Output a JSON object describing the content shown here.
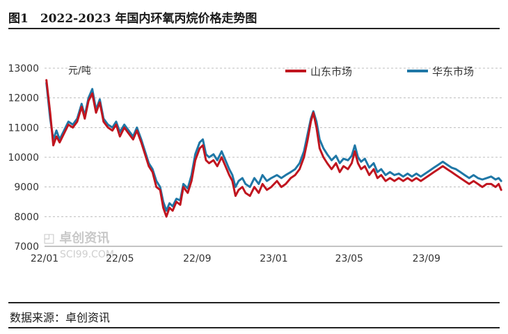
{
  "header": {
    "title": "图1　2022-2023 年国内环氧丙烷价格走势图"
  },
  "footer": {
    "source": "数据来源：卓创资讯"
  },
  "watermark": {
    "cn": "卓创资讯",
    "en": "SCI99.COM"
  },
  "chart_data": {
    "type": "line",
    "title": "图1　2022-2023 年国内环氧丙烷价格走势图",
    "ylabel": "元/吨",
    "xlabel": "",
    "ylim": [
      7000,
      13000
    ],
    "yticks": [
      "13000",
      "12000",
      "11000",
      "10000",
      "9000",
      "8000",
      "7000"
    ],
    "xticks": [
      "22/01",
      "22/05",
      "22/09",
      "23/01",
      "23/05",
      "23/09"
    ],
    "x_range": [
      "2022-01-01",
      "2023-12-31"
    ],
    "grid": "horizontal dashed",
    "legend": "top",
    "series": [
      {
        "name": "山东市场",
        "color": "#c0151f",
        "points": [
          [
            "2022-01-04",
            12600
          ],
          [
            "2022-01-10",
            11500
          ],
          [
            "2022-01-15",
            10400
          ],
          [
            "2022-01-20",
            10700
          ],
          [
            "2022-01-25",
            10500
          ],
          [
            "2022-02-01",
            10800
          ],
          [
            "2022-02-08",
            11100
          ],
          [
            "2022-02-15",
            11000
          ],
          [
            "2022-02-22",
            11200
          ],
          [
            "2022-03-01",
            11700
          ],
          [
            "2022-03-06",
            11300
          ],
          [
            "2022-03-12",
            11900
          ],
          [
            "2022-03-18",
            12150
          ],
          [
            "2022-03-24",
            11500
          ],
          [
            "2022-03-30",
            11850
          ],
          [
            "2022-04-05",
            11200
          ],
          [
            "2022-04-12",
            11000
          ],
          [
            "2022-04-19",
            10900
          ],
          [
            "2022-04-25",
            11100
          ],
          [
            "2022-05-01",
            10700
          ],
          [
            "2022-05-08",
            11000
          ],
          [
            "2022-05-15",
            10800
          ],
          [
            "2022-05-22",
            10600
          ],
          [
            "2022-05-28",
            10900
          ],
          [
            "2022-06-04",
            10500
          ],
          [
            "2022-06-10",
            10100
          ],
          [
            "2022-06-16",
            9700
          ],
          [
            "2022-06-22",
            9500
          ],
          [
            "2022-06-28",
            9000
          ],
          [
            "2022-07-04",
            8900
          ],
          [
            "2022-07-09",
            8300
          ],
          [
            "2022-07-14",
            8000
          ],
          [
            "2022-07-19",
            8300
          ],
          [
            "2022-07-24",
            8200
          ],
          [
            "2022-07-30",
            8500
          ],
          [
            "2022-08-05",
            8400
          ],
          [
            "2022-08-10",
            9000
          ],
          [
            "2022-08-17",
            8800
          ],
          [
            "2022-08-23",
            9200
          ],
          [
            "2022-08-29",
            9900
          ],
          [
            "2022-09-05",
            10300
          ],
          [
            "2022-09-10",
            10400
          ],
          [
            "2022-09-15",
            9900
          ],
          [
            "2022-09-20",
            9800
          ],
          [
            "2022-09-27",
            9900
          ],
          [
            "2022-10-03",
            9700
          ],
          [
            "2022-10-10",
            10000
          ],
          [
            "2022-10-16",
            9700
          ],
          [
            "2022-10-22",
            9400
          ],
          [
            "2022-10-27",
            9200
          ],
          [
            "2022-11-01",
            8700
          ],
          [
            "2022-11-06",
            8900
          ],
          [
            "2022-11-12",
            9000
          ],
          [
            "2022-11-17",
            8800
          ],
          [
            "2022-11-24",
            8700
          ],
          [
            "2022-12-01",
            9000
          ],
          [
            "2022-12-08",
            8800
          ],
          [
            "2022-12-14",
            9100
          ],
          [
            "2022-12-21",
            8900
          ],
          [
            "2022-12-28",
            9000
          ],
          [
            "2023-01-06",
            9200
          ],
          [
            "2023-01-13",
            9000
          ],
          [
            "2023-01-20",
            9100
          ],
          [
            "2023-01-28",
            9300
          ],
          [
            "2023-02-04",
            9400
          ],
          [
            "2023-02-11",
            9600
          ],
          [
            "2023-02-18",
            10000
          ],
          [
            "2023-02-24",
            10600
          ],
          [
            "2023-03-01",
            11200
          ],
          [
            "2023-03-05",
            11500
          ],
          [
            "2023-03-10",
            11000
          ],
          [
            "2023-03-15",
            10300
          ],
          [
            "2023-03-21",
            10000
          ],
          [
            "2023-03-27",
            9800
          ],
          [
            "2023-04-03",
            9600
          ],
          [
            "2023-04-10",
            9800
          ],
          [
            "2023-04-16",
            9500
          ],
          [
            "2023-04-22",
            9700
          ],
          [
            "2023-04-29",
            9600
          ],
          [
            "2023-05-05",
            9800
          ],
          [
            "2023-05-10",
            10200
          ],
          [
            "2023-05-15",
            9800
          ],
          [
            "2023-05-20",
            9600
          ],
          [
            "2023-05-26",
            9700
          ],
          [
            "2023-06-02",
            9400
          ],
          [
            "2023-06-09",
            9600
          ],
          [
            "2023-06-15",
            9300
          ],
          [
            "2023-06-21",
            9400
          ],
          [
            "2023-06-28",
            9200
          ],
          [
            "2023-07-05",
            9300
          ],
          [
            "2023-07-12",
            9200
          ],
          [
            "2023-07-19",
            9300
          ],
          [
            "2023-07-26",
            9200
          ],
          [
            "2023-08-02",
            9300
          ],
          [
            "2023-08-09",
            9200
          ],
          [
            "2023-08-16",
            9300
          ],
          [
            "2023-08-23",
            9200
          ],
          [
            "2023-08-30",
            9300
          ],
          [
            "2023-09-06",
            9400
          ],
          [
            "2023-09-13",
            9500
          ],
          [
            "2023-09-20",
            9600
          ],
          [
            "2023-09-27",
            9700
          ],
          [
            "2023-10-04",
            9600
          ],
          [
            "2023-10-11",
            9500
          ],
          [
            "2023-10-18",
            9400
          ],
          [
            "2023-10-25",
            9300
          ],
          [
            "2023-11-01",
            9200
          ],
          [
            "2023-11-08",
            9100
          ],
          [
            "2023-11-15",
            9200
          ],
          [
            "2023-11-22",
            9100
          ],
          [
            "2023-11-29",
            9000
          ],
          [
            "2023-12-06",
            9100
          ],
          [
            "2023-12-13",
            9100
          ],
          [
            "2023-12-20",
            9000
          ],
          [
            "2023-12-25",
            9100
          ],
          [
            "2023-12-29",
            8900
          ]
        ]
      },
      {
        "name": "华东市场",
        "color": "#1f77a6",
        "points": [
          [
            "2022-01-04",
            12500
          ],
          [
            "2022-01-10",
            11300
          ],
          [
            "2022-01-15",
            10600
          ],
          [
            "2022-01-20",
            10900
          ],
          [
            "2022-01-25",
            10600
          ],
          [
            "2022-02-01",
            10900
          ],
          [
            "2022-02-08",
            11200
          ],
          [
            "2022-02-15",
            11100
          ],
          [
            "2022-02-22",
            11300
          ],
          [
            "2022-03-01",
            11800
          ],
          [
            "2022-03-06",
            11400
          ],
          [
            "2022-03-12",
            12000
          ],
          [
            "2022-03-18",
            12300
          ],
          [
            "2022-03-24",
            11600
          ],
          [
            "2022-03-30",
            11950
          ],
          [
            "2022-04-05",
            11300
          ],
          [
            "2022-04-12",
            11100
          ],
          [
            "2022-04-19",
            11000
          ],
          [
            "2022-04-25",
            11200
          ],
          [
            "2022-05-01",
            10850
          ],
          [
            "2022-05-08",
            11100
          ],
          [
            "2022-05-15",
            10900
          ],
          [
            "2022-05-22",
            10700
          ],
          [
            "2022-05-28",
            11000
          ],
          [
            "2022-06-04",
            10600
          ],
          [
            "2022-06-10",
            10200
          ],
          [
            "2022-06-16",
            9800
          ],
          [
            "2022-06-22",
            9600
          ],
          [
            "2022-06-28",
            9200
          ],
          [
            "2022-07-04",
            9000
          ],
          [
            "2022-07-09",
            8500
          ],
          [
            "2022-07-14",
            8200
          ],
          [
            "2022-07-19",
            8450
          ],
          [
            "2022-07-24",
            8350
          ],
          [
            "2022-07-30",
            8600
          ],
          [
            "2022-08-05",
            8550
          ],
          [
            "2022-08-10",
            9100
          ],
          [
            "2022-08-17",
            8950
          ],
          [
            "2022-08-23",
            9400
          ],
          [
            "2022-08-29",
            10100
          ],
          [
            "2022-09-05",
            10500
          ],
          [
            "2022-09-10",
            10600
          ],
          [
            "2022-09-15",
            10100
          ],
          [
            "2022-09-20",
            10000
          ],
          [
            "2022-09-27",
            10100
          ],
          [
            "2022-10-03",
            9900
          ],
          [
            "2022-10-10",
            10200
          ],
          [
            "2022-10-16",
            9900
          ],
          [
            "2022-10-22",
            9600
          ],
          [
            "2022-10-27",
            9400
          ],
          [
            "2022-11-01",
            9000
          ],
          [
            "2022-11-06",
            9200
          ],
          [
            "2022-11-12",
            9300
          ],
          [
            "2022-11-17",
            9100
          ],
          [
            "2022-11-24",
            9000
          ],
          [
            "2022-12-01",
            9300
          ],
          [
            "2022-12-08",
            9100
          ],
          [
            "2022-12-14",
            9400
          ],
          [
            "2022-12-21",
            9200
          ],
          [
            "2022-12-28",
            9300
          ],
          [
            "2023-01-06",
            9400
          ],
          [
            "2023-01-13",
            9300
          ],
          [
            "2023-01-20",
            9400
          ],
          [
            "2023-01-28",
            9500
          ],
          [
            "2023-02-04",
            9600
          ],
          [
            "2023-02-11",
            9800
          ],
          [
            "2023-02-18",
            10200
          ],
          [
            "2023-02-24",
            10800
          ],
          [
            "2023-03-01",
            11300
          ],
          [
            "2023-03-05",
            11550
          ],
          [
            "2023-03-10",
            11200
          ],
          [
            "2023-03-15",
            10600
          ],
          [
            "2023-03-21",
            10300
          ],
          [
            "2023-03-27",
            10100
          ],
          [
            "2023-04-03",
            9900
          ],
          [
            "2023-04-10",
            10050
          ],
          [
            "2023-04-16",
            9800
          ],
          [
            "2023-04-22",
            9950
          ],
          [
            "2023-04-29",
            9900
          ],
          [
            "2023-05-05",
            10050
          ],
          [
            "2023-05-10",
            10400
          ],
          [
            "2023-05-15",
            10000
          ],
          [
            "2023-05-20",
            9850
          ],
          [
            "2023-05-26",
            9950
          ],
          [
            "2023-06-02",
            9650
          ],
          [
            "2023-06-09",
            9800
          ],
          [
            "2023-06-15",
            9500
          ],
          [
            "2023-06-21",
            9600
          ],
          [
            "2023-06-28",
            9400
          ],
          [
            "2023-07-05",
            9500
          ],
          [
            "2023-07-12",
            9400
          ],
          [
            "2023-07-19",
            9450
          ],
          [
            "2023-07-26",
            9350
          ],
          [
            "2023-08-02",
            9450
          ],
          [
            "2023-08-09",
            9350
          ],
          [
            "2023-08-16",
            9450
          ],
          [
            "2023-08-23",
            9350
          ],
          [
            "2023-08-30",
            9450
          ],
          [
            "2023-09-06",
            9550
          ],
          [
            "2023-09-13",
            9650
          ],
          [
            "2023-09-20",
            9750
          ],
          [
            "2023-09-27",
            9850
          ],
          [
            "2023-10-04",
            9750
          ],
          [
            "2023-10-11",
            9650
          ],
          [
            "2023-10-18",
            9600
          ],
          [
            "2023-10-25",
            9500
          ],
          [
            "2023-11-01",
            9400
          ],
          [
            "2023-11-08",
            9300
          ],
          [
            "2023-11-15",
            9400
          ],
          [
            "2023-11-22",
            9300
          ],
          [
            "2023-11-29",
            9250
          ],
          [
            "2023-12-06",
            9300
          ],
          [
            "2023-12-13",
            9350
          ],
          [
            "2023-12-20",
            9250
          ],
          [
            "2023-12-25",
            9300
          ],
          [
            "2023-12-29",
            9200
          ]
        ]
      }
    ]
  }
}
